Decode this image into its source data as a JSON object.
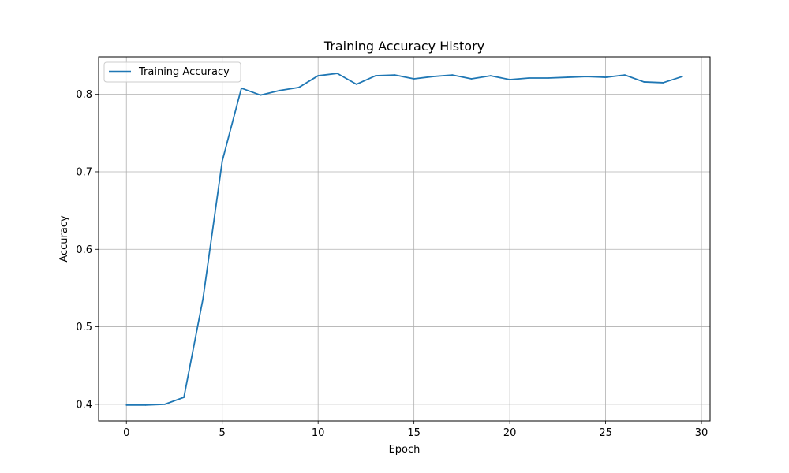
{
  "chart_data": {
    "type": "line",
    "title": "Training Accuracy History",
    "xlabel": "Epoch",
    "ylabel": "Accuracy",
    "xlim": [
      -1.45,
      30.45
    ],
    "ylim": [
      0.3785,
      0.8485
    ],
    "xticks": [
      0,
      5,
      10,
      15,
      20,
      25,
      30
    ],
    "yticks": [
      0.4,
      0.5,
      0.6,
      0.7,
      0.8
    ],
    "xtick_labels": [
      "0",
      "5",
      "10",
      "15",
      "20",
      "25",
      "30"
    ],
    "ytick_labels": [
      "0.4",
      "0.5",
      "0.6",
      "0.7",
      "0.8"
    ],
    "grid": true,
    "legend_position": "top-left",
    "series": [
      {
        "name": "Training Accuracy",
        "color": "#1f77b4",
        "x": [
          0,
          1,
          2,
          3,
          4,
          5,
          6,
          7,
          8,
          9,
          10,
          11,
          12,
          13,
          14,
          15,
          16,
          17,
          18,
          19,
          20,
          21,
          22,
          23,
          24,
          25,
          26,
          27,
          28,
          29
        ],
        "values": [
          0.399,
          0.399,
          0.4,
          0.409,
          0.537,
          0.714,
          0.808,
          0.799,
          0.805,
          0.809,
          0.824,
          0.827,
          0.813,
          0.824,
          0.825,
          0.82,
          0.823,
          0.825,
          0.82,
          0.824,
          0.819,
          0.821,
          0.821,
          0.822,
          0.823,
          0.822,
          0.825,
          0.816,
          0.815,
          0.823
        ]
      }
    ]
  }
}
